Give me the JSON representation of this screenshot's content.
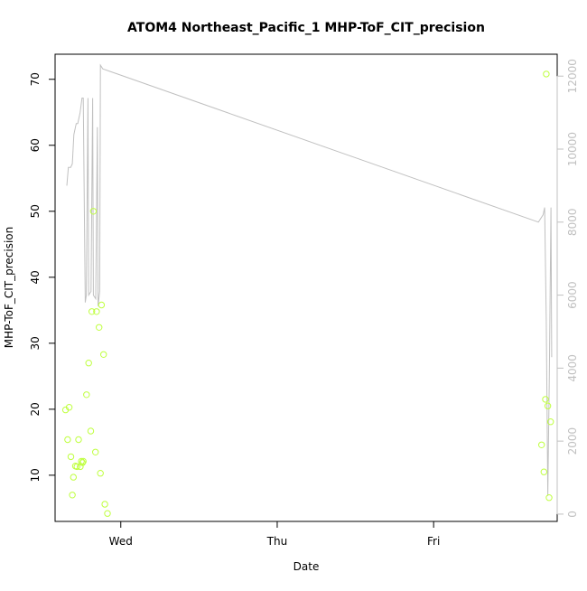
{
  "chart_data": {
    "type": "scatter",
    "title": "ATOM4 Northeast_Pacific_1 MHP-ToF_CIT_precision",
    "xlabel": "Date",
    "ylabel": "MHP-ToF_CIT_precision",
    "x_ticks": [
      {
        "x": 1.0,
        "label": "Wed"
      },
      {
        "x": 2.0,
        "label": "Thu"
      },
      {
        "x": 3.0,
        "label": "Fri"
      }
    ],
    "y_ticks_left": [
      10,
      20,
      30,
      40,
      50,
      60,
      70
    ],
    "y_ticks_right": [
      0,
      2000,
      4000,
      6000,
      8000,
      10000,
      12000
    ],
    "xlim": [
      0.58,
      3.79
    ],
    "ylim_left": [
      3.0,
      73.8
    ],
    "ylim_right": [
      -200,
      12600
    ],
    "grid": false,
    "legend": "none",
    "colors": {
      "points": "#bfff3f",
      "line": "#c0c0c0",
      "axis": "#000000",
      "right_axis": "#c0c0c0"
    },
    "series": [
      {
        "type": "scatter",
        "axis": "left",
        "points": [
          {
            "x": 0.647,
            "y": 19.9
          },
          {
            "x": 0.66,
            "y": 15.4
          },
          {
            "x": 0.67,
            "y": 20.3
          },
          {
            "x": 0.681,
            "y": 12.8
          },
          {
            "x": 0.69,
            "y": 7.0
          },
          {
            "x": 0.697,
            "y": 9.7
          },
          {
            "x": 0.71,
            "y": 11.4
          },
          {
            "x": 0.72,
            "y": 11.3
          },
          {
            "x": 0.73,
            "y": 15.4
          },
          {
            "x": 0.741,
            "y": 11.3
          },
          {
            "x": 0.748,
            "y": 12.1
          },
          {
            "x": 0.755,
            "y": 11.9
          },
          {
            "x": 0.76,
            "y": 12.1
          },
          {
            "x": 0.781,
            "y": 22.2
          },
          {
            "x": 0.795,
            "y": 27.0
          },
          {
            "x": 0.808,
            "y": 16.7
          },
          {
            "x": 0.815,
            "y": 34.8
          },
          {
            "x": 0.825,
            "y": 50.0
          },
          {
            "x": 0.838,
            "y": 13.5
          },
          {
            "x": 0.845,
            "y": 34.8
          },
          {
            "x": 0.861,
            "y": 32.4
          },
          {
            "x": 0.87,
            "y": 10.3
          },
          {
            "x": 0.877,
            "y": 35.8
          },
          {
            "x": 0.89,
            "y": 28.3
          },
          {
            "x": 0.898,
            "y": 5.6
          },
          {
            "x": 0.915,
            "y": 4.2
          },
          {
            "x": 3.69,
            "y": 14.6
          },
          {
            "x": 3.705,
            "y": 10.5
          },
          {
            "x": 3.715,
            "y": 21.5
          },
          {
            "x": 3.72,
            "y": 70.8
          },
          {
            "x": 3.73,
            "y": 20.5
          },
          {
            "x": 3.738,
            "y": 6.6
          },
          {
            "x": 3.748,
            "y": 18.1
          }
        ]
      },
      {
        "type": "line",
        "axis": "right",
        "points": [
          {
            "x": 0.655,
            "y": 9000
          },
          {
            "x": 0.665,
            "y": 9500
          },
          {
            "x": 0.68,
            "y": 9500
          },
          {
            "x": 0.69,
            "y": 9600
          },
          {
            "x": 0.7,
            "y": 10400
          },
          {
            "x": 0.715,
            "y": 10700
          },
          {
            "x": 0.725,
            "y": 10700
          },
          {
            "x": 0.74,
            "y": 11000
          },
          {
            "x": 0.752,
            "y": 11400
          },
          {
            "x": 0.76,
            "y": 11400
          },
          {
            "x": 0.773,
            "y": 5800
          },
          {
            "x": 0.78,
            "y": 6000
          },
          {
            "x": 0.79,
            "y": 11400
          },
          {
            "x": 0.795,
            "y": 6000
          },
          {
            "x": 0.81,
            "y": 6100
          },
          {
            "x": 0.82,
            "y": 11400
          },
          {
            "x": 0.825,
            "y": 6000
          },
          {
            "x": 0.84,
            "y": 5900
          },
          {
            "x": 0.85,
            "y": 10600
          },
          {
            "x": 0.855,
            "y": 5700
          },
          {
            "x": 0.865,
            "y": 6100
          },
          {
            "x": 0.87,
            "y": 12300
          },
          {
            "x": 0.885,
            "y": 12200
          },
          {
            "x": 3.67,
            "y": 8000
          },
          {
            "x": 3.7,
            "y": 8200
          },
          {
            "x": 3.71,
            "y": 8400
          },
          {
            "x": 3.72,
            "y": 5300
          },
          {
            "x": 3.73,
            "y": 500
          },
          {
            "x": 3.74,
            "y": 3800
          },
          {
            "x": 3.75,
            "y": 8400
          },
          {
            "x": 3.755,
            "y": 4300
          }
        ]
      }
    ]
  }
}
